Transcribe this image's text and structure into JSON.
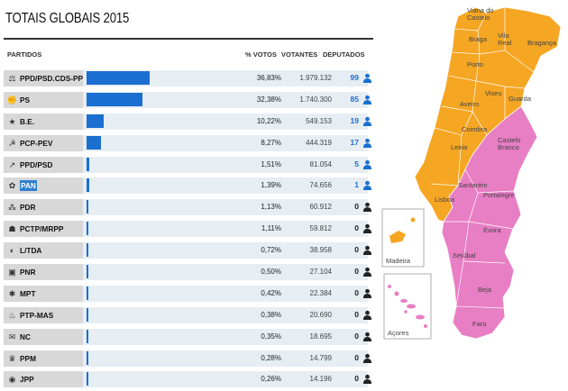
{
  "title": "TOTAIS GLOBAIS 2015",
  "headers": {
    "partidos": "PARTIDOS",
    "votos": "% VOTOS",
    "votantes": "VOTANTES",
    "deputados": "DEPUTADOS"
  },
  "colors": {
    "accent": "#1a6fd0",
    "orange": "#f5a623",
    "pink": "#e87ec4"
  },
  "parties": [
    {
      "name": "PPD/PSD.CDS-PP",
      "pct": "36,83%",
      "pct_value": 36.83,
      "votes": "1.979.132",
      "seats": "99",
      "icon": "coalition-logo"
    },
    {
      "name": "PS",
      "pct": "32,38%",
      "pct_value": 32.38,
      "votes": "1.740.300",
      "seats": "85",
      "icon": "ps-logo"
    },
    {
      "name": "B.E.",
      "pct": "10,22%",
      "pct_value": 10.22,
      "votes": "549.153",
      "seats": "19",
      "icon": "be-logo"
    },
    {
      "name": "PCP-PEV",
      "pct": "8,27%",
      "pct_value": 8.27,
      "votes": "444.319",
      "seats": "17",
      "icon": "pcp-logo"
    },
    {
      "name": "PPD/PSD",
      "pct": "1,51%",
      "pct_value": 1.51,
      "votes": "81.054",
      "seats": "5",
      "icon": "psd-logo"
    },
    {
      "name": "PAN",
      "pct": "1,39%",
      "pct_value": 1.39,
      "votes": "74.656",
      "seats": "1",
      "icon": "pan-logo",
      "highlight": true
    },
    {
      "name": "PDR",
      "pct": "1,13%",
      "pct_value": 1.13,
      "votes": "60.912",
      "seats": "0",
      "icon": "pdr-logo"
    },
    {
      "name": "PCTP/MRPP",
      "pct": "1,11%",
      "pct_value": 1.11,
      "votes": "59.812",
      "seats": "0",
      "icon": "mrpp-logo"
    },
    {
      "name": "L/TDA",
      "pct": "0,72%",
      "pct_value": 0.72,
      "votes": "38.958",
      "seats": "0",
      "icon": "livre-logo"
    },
    {
      "name": "PNR",
      "pct": "0,50%",
      "pct_value": 0.5,
      "votes": "27.104",
      "seats": "0",
      "icon": "pnr-logo"
    },
    {
      "name": "MPT",
      "pct": "0,42%",
      "pct_value": 0.42,
      "votes": "22.384",
      "seats": "0",
      "icon": "mpt-logo"
    },
    {
      "name": "PTP-MAS",
      "pct": "0,38%",
      "pct_value": 0.38,
      "votes": "20.690",
      "seats": "0",
      "icon": "ptp-logo"
    },
    {
      "name": "NC",
      "pct": "0,35%",
      "pct_value": 0.35,
      "votes": "18.695",
      "seats": "0",
      "icon": "nc-logo"
    },
    {
      "name": "PPM",
      "pct": "0,28%",
      "pct_value": 0.28,
      "votes": "14.799",
      "seats": "0",
      "icon": "ppm-logo"
    },
    {
      "name": "JPP",
      "pct": "0,26%",
      "pct_value": 0.26,
      "votes": "14.196",
      "seats": "0",
      "icon": "jpp-logo"
    }
  ],
  "map": {
    "districts": [
      "Viana do Castelo",
      "Braga",
      "Vila Real",
      "Bragança",
      "Porto",
      "Viseu",
      "Guarda",
      "Aveiro",
      "Coimbra",
      "Castelo Branco",
      "Leiria",
      "Santarém",
      "Portalegre",
      "Lisboa",
      "Évora",
      "Setúbal",
      "Beja",
      "Faro"
    ],
    "islands": [
      "Madeira",
      "Açores"
    ]
  }
}
